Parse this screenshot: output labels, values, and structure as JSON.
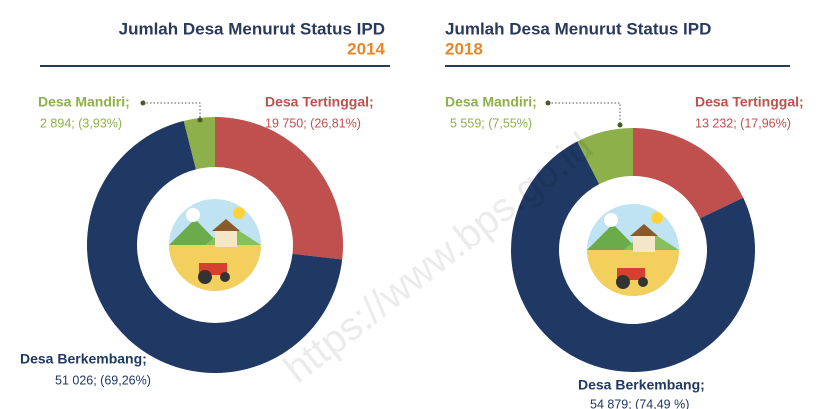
{
  "chart_data": [
    {
      "type": "donut",
      "title": "Jumlah Desa Menurut Status IPD",
      "subtitle": "2014",
      "categories": [
        "Desa Tertinggal;",
        "Desa Berkembang;",
        "Desa Mandiri;"
      ],
      "values": [
        19750,
        51026,
        2894
      ],
      "value_labels": [
        "19 750; (26,81%)",
        "51 026; (69,26%)",
        "2 894; (3,93%)"
      ],
      "colors": [
        "#c0504d",
        "#1f3864",
        "#8db04a"
      ]
    },
    {
      "type": "donut",
      "title": "Jumlah Desa Menurut Status IPD",
      "subtitle": "2018",
      "categories": [
        "Desa Tertinggal;",
        "Desa Berkembang;",
        "Desa Mandiri;"
      ],
      "values": [
        13232,
        54879,
        5559
      ],
      "value_labels": [
        "13 232; (17,96%)",
        "54 879; (74,49 %)",
        "5 559; (7,55%)"
      ],
      "colors": [
        "#c0504d",
        "#1f3864",
        "#8db04a"
      ]
    }
  ],
  "watermark": "https://www.bps.go.id"
}
